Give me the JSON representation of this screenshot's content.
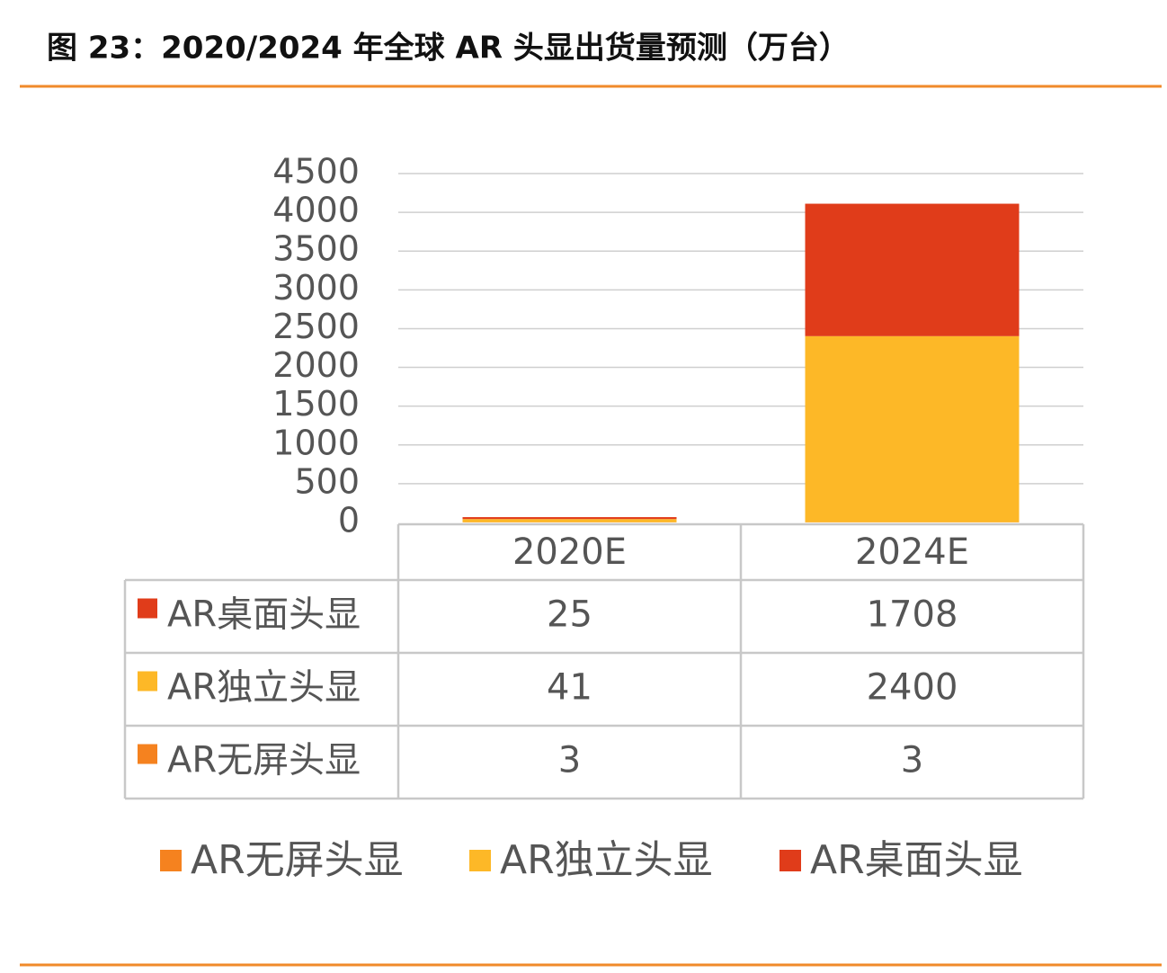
{
  "chart_data": {
    "type": "bar",
    "stacked": true,
    "title": "图 23：2020/2024 年全球 AR 头显出货量预测（万台）",
    "categories": [
      "2020E",
      "2024E"
    ],
    "series": [
      {
        "name": "AR无屏头显",
        "color": "#f5821f",
        "values": [
          3,
          3
        ]
      },
      {
        "name": "AR独立头显",
        "color": "#fdb827",
        "values": [
          41,
          2400
        ]
      },
      {
        "name": "AR桌面头显",
        "color": "#e03c1a",
        "values": [
          25,
          1708
        ]
      }
    ],
    "ylim": [
      0,
      4500
    ],
    "yticks": [
      0,
      500,
      1000,
      1500,
      2000,
      2500,
      3000,
      3500,
      4000,
      4500
    ],
    "grid": true
  }
}
